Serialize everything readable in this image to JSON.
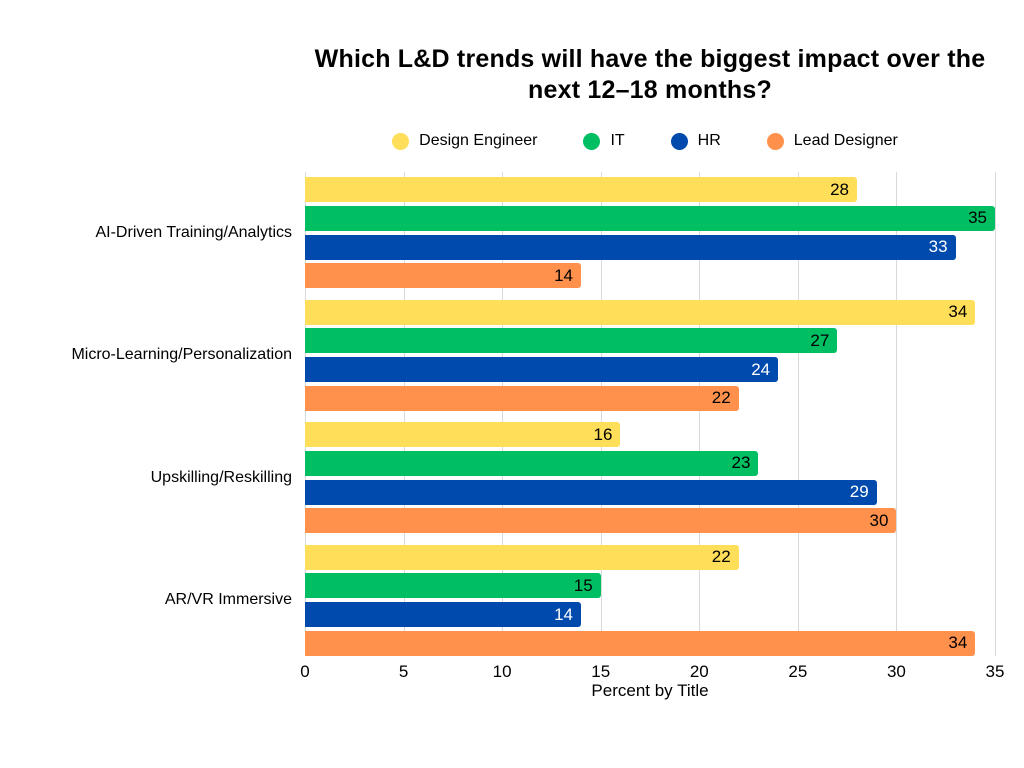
{
  "chart_data": {
    "type": "bar",
    "orientation": "horizontal",
    "title": "Which L&D trends will have the biggest impact over the next 12–18 months?",
    "xlabel": "Percent by Title",
    "categories": [
      "AI-Driven Training/Analytics",
      "Micro-Learning/Personalization",
      "Upskilling/Reskilling",
      "AR/VR Immersive"
    ],
    "series": [
      {
        "name": "Design Engineer",
        "color": "#FFDE59",
        "value_label_color": "#000000",
        "values": [
          28,
          34,
          16,
          22
        ]
      },
      {
        "name": "IT",
        "color": "#00BF63",
        "value_label_color": "#000000",
        "values": [
          35,
          27,
          23,
          15
        ]
      },
      {
        "name": "HR",
        "color": "#004AAD",
        "value_label_color": "#FFFFFF",
        "values": [
          33,
          24,
          29,
          14
        ]
      },
      {
        "name": "Lead Designer",
        "color": "#FF914D",
        "value_label_color": "#000000",
        "values": [
          14,
          22,
          30,
          34
        ]
      }
    ],
    "xlim": [
      0,
      35
    ],
    "xticks": [
      0,
      5,
      10,
      15,
      20,
      25,
      30,
      35
    ],
    "grid": true,
    "gridline_color": "#d9d9d9",
    "background_color": "#ffffff",
    "legend_position": "top",
    "value_labels": "inside-end"
  }
}
